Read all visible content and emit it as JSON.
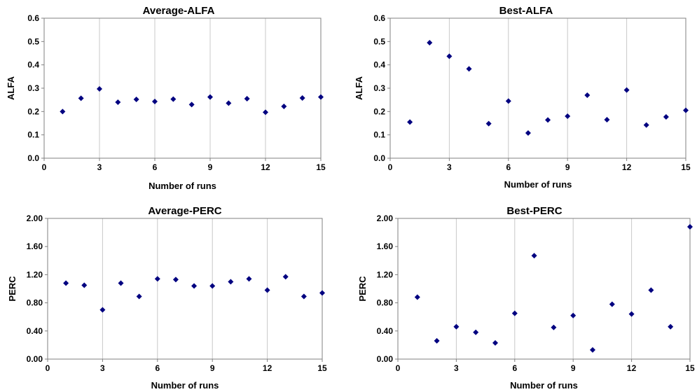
{
  "chart_data": [
    {
      "id": "avg-alfa",
      "type": "scatter",
      "title": "Average-ALFA",
      "xlabel": "Number of runs",
      "ylabel": "ALFA",
      "xlim": [
        0,
        15
      ],
      "ylim": [
        0,
        0.6
      ],
      "xticks": [
        "0",
        "3",
        "6",
        "9",
        "12",
        "15"
      ],
      "yticks": [
        "0.0",
        "0.1",
        "0.2",
        "0.3",
        "0.4",
        "0.5",
        "0.6"
      ],
      "grid": "vertical",
      "marker_color": "#000080",
      "x": [
        1,
        2,
        3,
        4,
        5,
        6,
        7,
        8,
        9,
        10,
        11,
        12,
        13,
        14,
        15
      ],
      "y": [
        0.2,
        0.257,
        0.297,
        0.24,
        0.252,
        0.243,
        0.253,
        0.23,
        0.262,
        0.236,
        0.255,
        0.197,
        0.222,
        0.258,
        0.262
      ]
    },
    {
      "id": "best-alfa",
      "type": "scatter",
      "title": "Best-ALFA",
      "xlabel": "Number of runs",
      "ylabel": "ALFA",
      "xlim": [
        0,
        15
      ],
      "ylim": [
        0,
        0.6
      ],
      "xticks": [
        "0",
        "3",
        "6",
        "9",
        "12",
        "15"
      ],
      "yticks": [
        "0.0",
        "0.1",
        "0.2",
        "0.3",
        "0.4",
        "0.5",
        "0.6"
      ],
      "grid": "vertical",
      "marker_color": "#000080",
      "x": [
        1,
        2,
        3,
        4,
        5,
        6,
        7,
        8,
        9,
        10,
        11,
        12,
        13,
        14,
        15
      ],
      "y": [
        0.155,
        0.495,
        0.437,
        0.383,
        0.148,
        0.245,
        0.108,
        0.164,
        0.18,
        0.27,
        0.165,
        0.292,
        0.142,
        0.177,
        0.205
      ]
    },
    {
      "id": "avg-perc",
      "type": "scatter",
      "title": "Average-PERC",
      "xlabel": "Number of runs",
      "ylabel": "PERC",
      "xlim": [
        0,
        15
      ],
      "ylim": [
        0,
        2.0
      ],
      "xticks": [
        "0",
        "3",
        "6",
        "9",
        "12",
        "15"
      ],
      "yticks": [
        "0.00",
        "0.40",
        "0.80",
        "1.20",
        "1.60",
        "2.00"
      ],
      "grid": "vertical",
      "marker_color": "#000080",
      "x": [
        1,
        2,
        3,
        4,
        5,
        6,
        7,
        8,
        9,
        10,
        11,
        12,
        13,
        14,
        15
      ],
      "y": [
        1.08,
        1.05,
        0.7,
        1.08,
        0.89,
        1.14,
        1.13,
        1.04,
        1.04,
        1.1,
        1.14,
        0.98,
        1.17,
        0.89,
        0.94
      ]
    },
    {
      "id": "best-perc",
      "type": "scatter",
      "title": "Best-PERC",
      "xlabel": "Number of runs",
      "ylabel": "PERC",
      "xlim": [
        0,
        15
      ],
      "ylim": [
        0,
        2.0
      ],
      "xticks": [
        "0",
        "3",
        "6",
        "9",
        "12",
        "15"
      ],
      "yticks": [
        "0.00",
        "0.40",
        "0.80",
        "1.20",
        "1.60",
        "2.00"
      ],
      "grid": "vertical",
      "marker_color": "#000080",
      "x": [
        1,
        2,
        3,
        4,
        5,
        6,
        7,
        8,
        9,
        10,
        11,
        12,
        13,
        14,
        15
      ],
      "y": [
        0.88,
        0.26,
        0.46,
        0.38,
        0.23,
        0.65,
        1.47,
        0.45,
        0.62,
        0.13,
        0.78,
        0.64,
        0.98,
        0.46,
        1.88
      ]
    }
  ]
}
